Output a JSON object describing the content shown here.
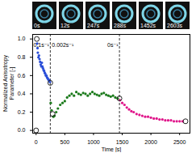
{
  "chart_data": {
    "type": "scatter",
    "xlabel": "Time [s]",
    "ylabel": "Normalized Anisotropy Parameter [-]",
    "xlim": [
      -60,
      2680
    ],
    "ylim": [
      -0.03,
      1.05
    ],
    "xticks": [
      0,
      500,
      1000,
      1500,
      2000,
      2500
    ],
    "yticks": [
      {
        "value": 0,
        "label": "0.0"
      },
      {
        "value": 0.2,
        "label": "0.2"
      },
      {
        "value": 0.4,
        "label": "0.4"
      },
      {
        "value": 0.6,
        "label": "0.6"
      },
      {
        "value": 0.8,
        "label": "0.8"
      },
      {
        "value": 1,
        "label": "1.0"
      }
    ],
    "grid": false,
    "series": [
      {
        "color": "#2b4fd8",
        "marker": "circle",
        "x": [
          20,
          25,
          30,
          40,
          50,
          60,
          70,
          80,
          90,
          100,
          110,
          120,
          130,
          140,
          150,
          160,
          170,
          180,
          190,
          200,
          210,
          220,
          230,
          240
        ],
        "values": [
          0.95,
          0.9,
          0.85,
          0.8,
          0.82,
          0.78,
          0.75,
          0.72,
          0.7,
          0.74,
          0.7,
          0.68,
          0.66,
          0.65,
          0.63,
          0.62,
          0.6,
          0.6,
          0.58,
          0.57,
          0.56,
          0.55,
          0.55,
          0.53
        ]
      },
      {
        "color": "#1b7a1b",
        "marker": "circle",
        "x": [
          255,
          270,
          300,
          320,
          350,
          380,
          420,
          460,
          500,
          540,
          580,
          620,
          660,
          700,
          740,
          780,
          820,
          860,
          900,
          940,
          980,
          1020,
          1060,
          1100,
          1140,
          1180,
          1220,
          1260,
          1300,
          1340,
          1380,
          1420
        ],
        "values": [
          0.3,
          0.22,
          0.15,
          0.16,
          0.2,
          0.24,
          0.28,
          0.3,
          0.32,
          0.36,
          0.38,
          0.4,
          0.38,
          0.42,
          0.4,
          0.39,
          0.41,
          0.4,
          0.38,
          0.4,
          0.42,
          0.4,
          0.39,
          0.38,
          0.4,
          0.41,
          0.39,
          0.38,
          0.37,
          0.38,
          0.36,
          0.35
        ]
      },
      {
        "color": "#e0168a",
        "marker": "circle",
        "x": [
          1460,
          1500,
          1540,
          1580,
          1620,
          1660,
          1700,
          1750,
          1800,
          1850,
          1900,
          1950,
          2000,
          2050,
          2100,
          2150,
          2200,
          2250,
          2300,
          2350,
          2400,
          2450,
          2500,
          2550
        ],
        "values": [
          0.33,
          0.3,
          0.28,
          0.25,
          0.23,
          0.21,
          0.2,
          0.18,
          0.17,
          0.16,
          0.15,
          0.15,
          0.14,
          0.13,
          0.13,
          0.12,
          0.12,
          0.11,
          0.11,
          0.11,
          0.1,
          0.1,
          0.1,
          0.1
        ]
      }
    ],
    "snapshots": [
      {
        "label": "0s",
        "x": 0,
        "y": 0
      },
      {
        "label": "12s",
        "x": 12,
        "y": 1.0
      },
      {
        "label": "247s",
        "x": 247,
        "y": 0.52
      },
      {
        "label": "288s",
        "x": 288,
        "y": 0.18
      },
      {
        "label": "1452s",
        "x": 1452,
        "y": 0.35
      },
      {
        "label": "2603s",
        "x": 2603,
        "y": 0.1
      }
    ],
    "vlines": [
      247,
      1452
    ],
    "annotations": [
      {
        "text": "0.1s⁻¹",
        "x": 225,
        "y": 0.93
      },
      {
        "text": "0.002s⁻¹",
        "x": 275,
        "y": 0.93
      },
      {
        "text": "0s⁻¹",
        "x": 1430,
        "y": 0.93
      }
    ]
  }
}
